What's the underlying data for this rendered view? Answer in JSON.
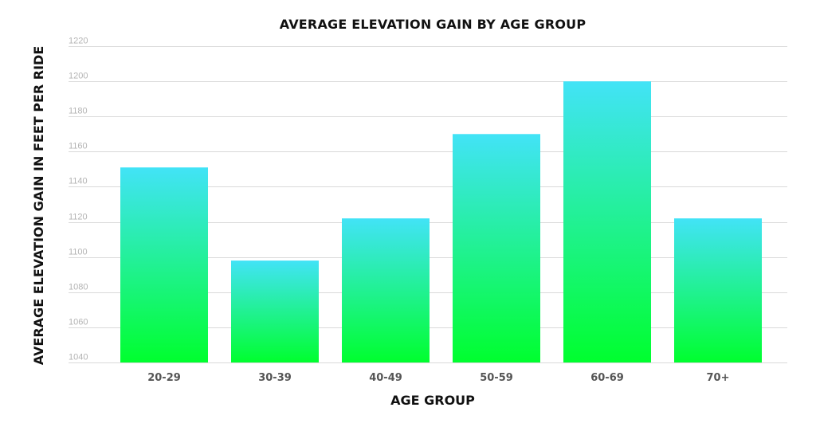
{
  "chart_data": {
    "type": "bar",
    "title": "AVERAGE ELEVATION GAIN BY AGE GROUP",
    "xlabel": "AGE GROUP",
    "ylabel": "AVERAGE ELEVATION GAIN IN FEET PER RIDE",
    "categories": [
      "20-29",
      "30-39",
      "40-49",
      "50-59",
      "60-69",
      "70+"
    ],
    "values": [
      1151,
      1098,
      1122,
      1170,
      1200,
      1122
    ],
    "ylim": [
      1040,
      1220
    ],
    "yticks": [
      1040,
      1060,
      1080,
      1100,
      1120,
      1140,
      1160,
      1180,
      1200,
      1220
    ],
    "grid": true,
    "legend": "none",
    "colors": {
      "bar_top": "#42e3f7",
      "bar_bottom": "#00ff2e",
      "grid": "#d9d9d9",
      "title": "#111111",
      "tick": "#b3b3b3",
      "category": "#555555"
    }
  }
}
